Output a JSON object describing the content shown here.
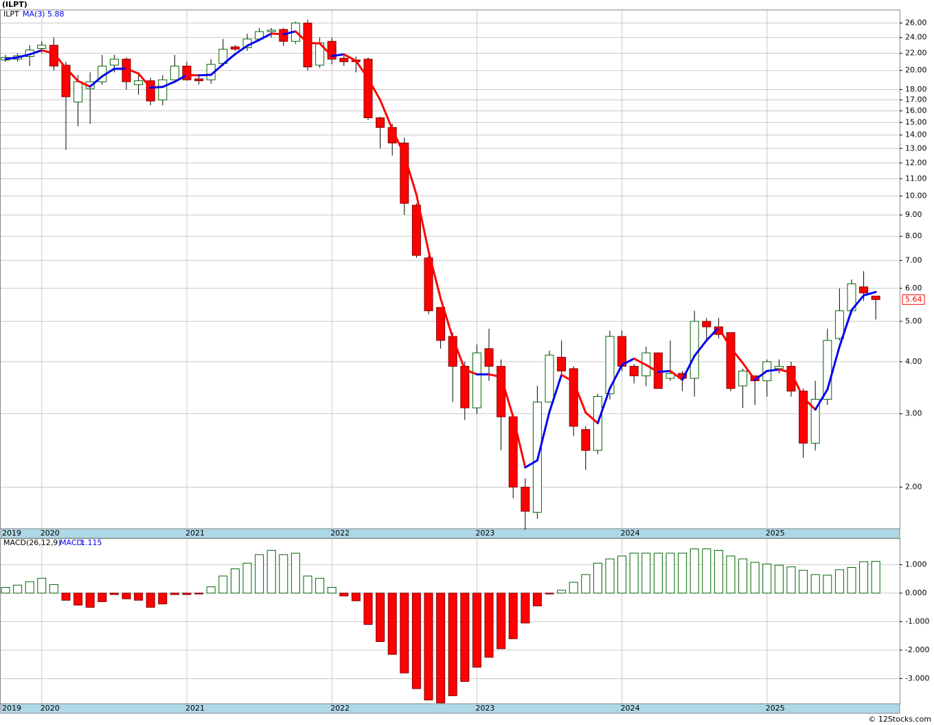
{
  "title": "(ILPT)",
  "footer": "© 12Stocks.com",
  "chart_data": [
    {
      "type": "candlestick",
      "symbol": "ILPT",
      "log_scale": true,
      "grid": true,
      "up_color": "#006400",
      "down_color": "#ff0000",
      "wick_color": "#000000",
      "categories": [
        "2019",
        null,
        null,
        "2020",
        null,
        null,
        null,
        null,
        null,
        null,
        null,
        null,
        null,
        null,
        null,
        "2021",
        null,
        null,
        null,
        null,
        null,
        null,
        null,
        null,
        null,
        null,
        null,
        "2022",
        null,
        null,
        null,
        null,
        null,
        null,
        null,
        null,
        null,
        null,
        null,
        "2023",
        null,
        null,
        null,
        null,
        null,
        null,
        null,
        null,
        null,
        null,
        null,
        "2024",
        null,
        null,
        null,
        null,
        null,
        null,
        null,
        null,
        null,
        null,
        null,
        "2025",
        null,
        null,
        null,
        null,
        null,
        null,
        null,
        null,
        null
      ],
      "open": [
        21.2,
        21.3,
        21.6,
        22.6,
        23,
        20.6,
        16.8,
        18.1,
        18.8,
        20.6,
        21.3,
        18.5,
        18.9,
        17,
        19,
        20.5,
        19.1,
        19,
        20.8,
        22.8,
        22.7,
        23.8,
        24.8,
        25.1,
        23.5,
        26,
        20.6,
        23.5,
        21.4,
        21.2,
        21.3,
        15.4,
        14.6,
        13.4,
        9.5,
        7.1,
        5.4,
        4.6,
        3.9,
        3.1,
        4.3,
        3.9,
        2.95,
        2.0,
        1.74,
        3.2,
        4.1,
        3.85,
        2.75,
        2.45,
        3.35,
        4.6,
        3.9,
        3.7,
        4.2,
        3.65,
        3.75,
        3.65,
        5.0,
        4.85,
        4.7,
        3.5,
        3.7,
        3.6,
        3.85,
        3.9,
        3.4,
        2.55,
        3.25,
        4.55,
        5.3,
        6.05,
        5.75
      ],
      "high": [
        21.8,
        22,
        23,
        23.5,
        24,
        21,
        19.5,
        19.8,
        21.8,
        21.8,
        21.5,
        19.5,
        19.2,
        19.5,
        21.8,
        21,
        19.5,
        21.3,
        23.8,
        23,
        24.5,
        25.3,
        25.3,
        25.3,
        26.2,
        26.5,
        24,
        24,
        22,
        21.6,
        21.5,
        15.5,
        14.9,
        13.8,
        9.6,
        7.2,
        5.4,
        4.7,
        4,
        4.4,
        4.8,
        4.05,
        2.95,
        2.1,
        3.5,
        4.25,
        4.5,
        3.9,
        2.8,
        3.35,
        4.75,
        4.75,
        3.95,
        4.35,
        4.2,
        4.5,
        3.8,
        5.3,
        5.1,
        5.1,
        4.7,
        3.85,
        3.7,
        4.05,
        4.05,
        4.0,
        3.45,
        3.6,
        4.8,
        6.0,
        6.3,
        6.6,
        5.75
      ],
      "low": [
        21.0,
        21,
        20.5,
        22,
        20,
        12.9,
        14.7,
        14.9,
        18.5,
        19.8,
        18,
        17.5,
        16.5,
        16.5,
        19,
        18.9,
        18.5,
        18.6,
        20.5,
        22.3,
        22.3,
        23.5,
        24,
        22.9,
        23.2,
        20,
        20.3,
        20.7,
        20.5,
        19.8,
        15.2,
        13,
        12.5,
        9,
        7.1,
        5.2,
        4.3,
        3.2,
        2.9,
        3.0,
        3.6,
        2.45,
        1.88,
        1.58,
        1.68,
        3.2,
        3.7,
        2.65,
        2.2,
        2.4,
        3.25,
        3.8,
        3.55,
        3.5,
        3.45,
        3.6,
        3.4,
        3.3,
        4.5,
        4.55,
        3.4,
        3.1,
        3.15,
        3.3,
        3.75,
        3.3,
        2.35,
        2.45,
        3.15,
        4.5,
        5.2,
        5.6,
        5.05
      ],
      "close": [
        21.5,
        21.7,
        22.4,
        23,
        20.5,
        17.3,
        18.8,
        18.8,
        20.5,
        21.3,
        18.8,
        18.9,
        16.9,
        19,
        20.5,
        19,
        18.9,
        20.7,
        22.5,
        22.5,
        23.8,
        24.8,
        25,
        23.5,
        26,
        20.4,
        23.3,
        21.3,
        21,
        21,
        15.4,
        14.6,
        13.4,
        9.6,
        7.2,
        5.3,
        4.5,
        3.9,
        3.1,
        4.2,
        3.9,
        2.95,
        2.0,
        1.75,
        3.2,
        4.15,
        3.8,
        2.8,
        2.45,
        3.3,
        4.6,
        3.9,
        3.7,
        4.2,
        3.45,
        3.75,
        3.65,
        5.0,
        4.85,
        4.65,
        3.45,
        3.8,
        3.6,
        4.0,
        3.9,
        3.4,
        2.55,
        3.25,
        4.5,
        5.3,
        6.15,
        5.85,
        5.64
      ],
      "ma": {
        "name": "MA(3)",
        "rising_color": "#0000ee",
        "falling_color": "#ff0000",
        "values": [
          21.3,
          21.5,
          21.87,
          22.37,
          21.97,
          20.27,
          18.87,
          18.3,
          19.37,
          20.2,
          20.2,
          19.67,
          18.2,
          18.27,
          18.8,
          19.5,
          19.47,
          19.53,
          20.7,
          21.9,
          22.93,
          23.7,
          24.53,
          24.43,
          24.83,
          23.3,
          23.23,
          21.67,
          21.87,
          21.1,
          19.13,
          17,
          14.47,
          12.53,
          10.07,
          7.37,
          5.67,
          4.57,
          3.83,
          3.73,
          3.73,
          3.68,
          2.95,
          2.23,
          2.32,
          3.03,
          3.72,
          3.58,
          3.02,
          2.85,
          3.45,
          3.93,
          4.07,
          3.93,
          3.78,
          3.8,
          3.62,
          4.13,
          4.5,
          4.83,
          4.32,
          3.97,
          3.62,
          3.8,
          3.83,
          3.77,
          3.28,
          3.07,
          3.43,
          4.35,
          5.32,
          5.77,
          5.88
        ]
      },
      "ylim": [
        1.59,
        27.9
      ],
      "yticks": [
        {
          "value": 26,
          "label": "26.00"
        },
        {
          "value": 24,
          "label": "24.00"
        },
        {
          "value": 22,
          "label": "22.00"
        },
        {
          "value": 20,
          "label": "20.00"
        },
        {
          "value": 18,
          "label": "18.00"
        },
        {
          "value": 17,
          "label": "17.00"
        },
        {
          "value": 16,
          "label": "16.00"
        },
        {
          "value": 15,
          "label": "15.00"
        },
        {
          "value": 14,
          "label": "14.00"
        },
        {
          "value": 13,
          "label": "13.00"
        },
        {
          "value": 12,
          "label": "12.00"
        },
        {
          "value": 11,
          "label": "11.00"
        },
        {
          "value": 10,
          "label": "10.00"
        },
        {
          "value": 9,
          "label": "9.00"
        },
        {
          "value": 8,
          "label": "8.00"
        },
        {
          "value": 7,
          "label": "7.00"
        },
        {
          "value": 6,
          "label": "6.00"
        },
        {
          "value": 5,
          "label": "5.00"
        },
        {
          "value": 4,
          "label": "4.00"
        },
        {
          "value": 3,
          "label": "3.00"
        },
        {
          "value": 2,
          "label": "2.00"
        }
      ]
    },
    {
      "type": "histogram",
      "name": "MACD(26,12,9)",
      "value_name": "MACD:",
      "up_color": "#006400",
      "down_color": "#ff0000",
      "grid": true,
      "values": [
        0.2,
        0.28,
        0.4,
        0.52,
        0.3,
        -0.25,
        -0.42,
        -0.5,
        -0.3,
        -0.05,
        -0.2,
        -0.25,
        -0.5,
        -0.38,
        -0.05,
        -0.05,
        -0.03,
        0.22,
        0.6,
        0.85,
        1.05,
        1.35,
        1.5,
        1.35,
        1.4,
        0.6,
        0.52,
        0.2,
        -0.1,
        -0.27,
        -1.1,
        -1.7,
        -2.15,
        -2.8,
        -3.35,
        -3.75,
        -3.85,
        -3.6,
        -3.1,
        -2.6,
        -2.25,
        -1.95,
        -1.6,
        -1.05,
        -0.45,
        -0.03,
        0.1,
        0.38,
        0.65,
        1.05,
        1.2,
        1.3,
        1.4,
        1.4,
        1.4,
        1.4,
        1.4,
        1.55,
        1.55,
        1.5,
        1.3,
        1.2,
        1.08,
        1.02,
        0.98,
        0.92,
        0.8,
        0.65,
        0.63,
        0.82,
        0.9,
        1.1,
        1.115
      ],
      "ylim": [
        -3.88,
        1.9
      ],
      "yticks": [
        {
          "value": 1,
          "label": "1.000"
        },
        {
          "value": 0,
          "label": "0.000"
        },
        {
          "value": -1,
          "label": "-1.000"
        },
        {
          "value": -2,
          "label": "-2.000"
        },
        {
          "value": -3,
          "label": "-3.000"
        }
      ]
    }
  ]
}
